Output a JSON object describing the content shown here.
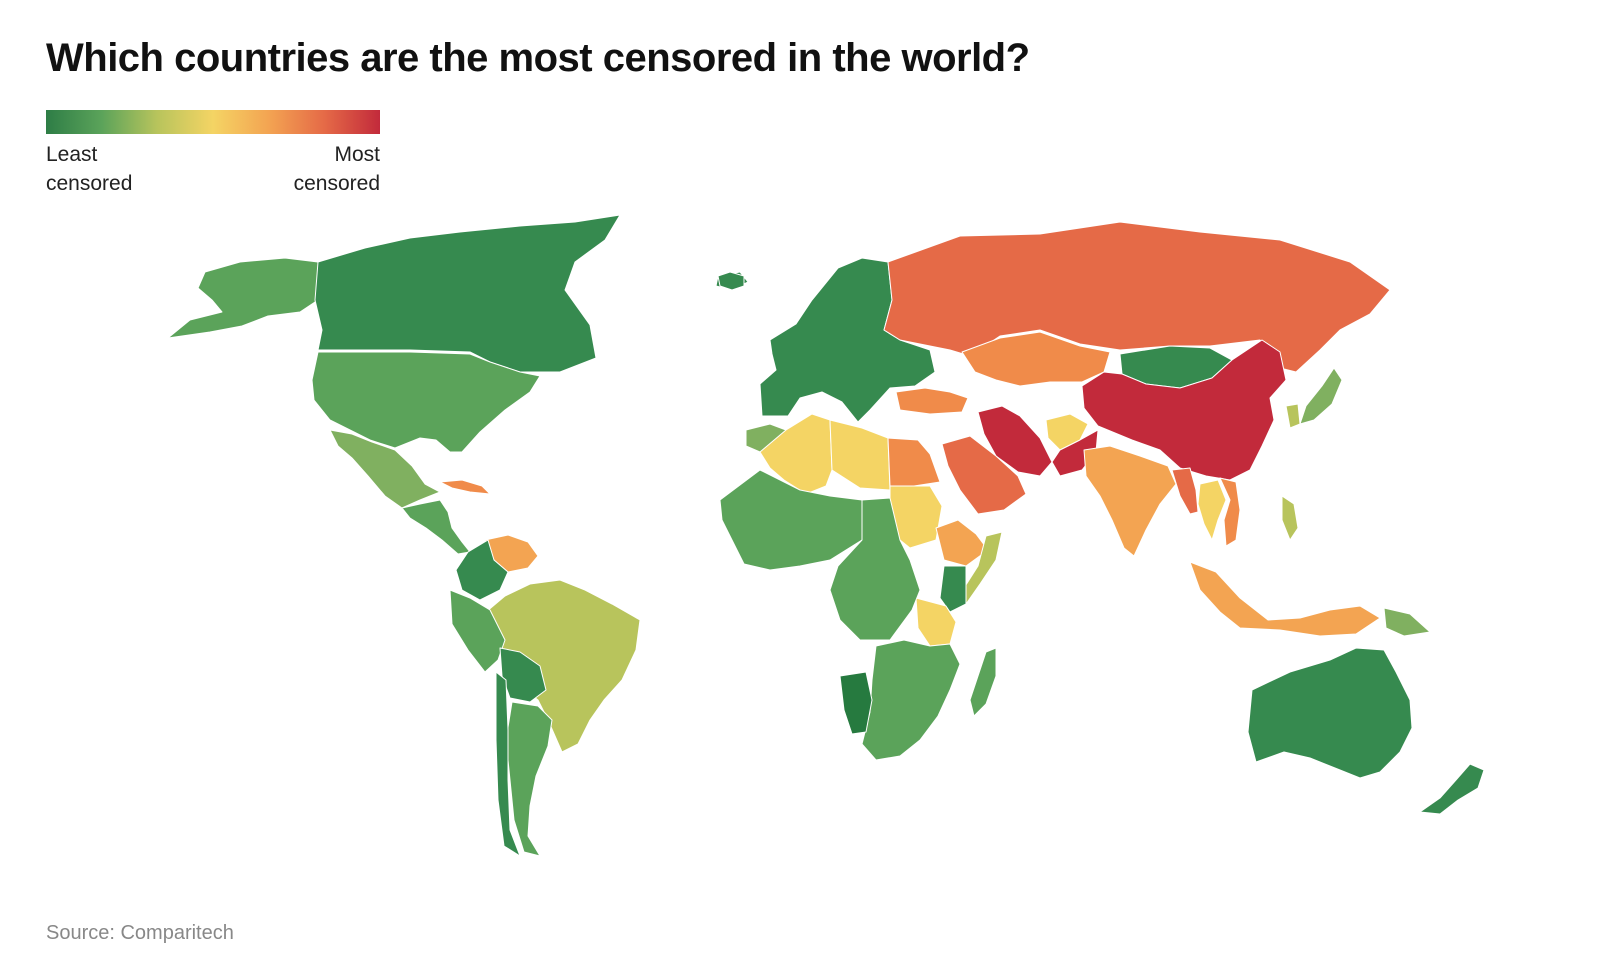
{
  "title": "Which countries are the most censored in the world?",
  "legend": {
    "min_label": "Least censored",
    "max_label": "Most censored",
    "colors": [
      "#2e7d46",
      "#5ba35a",
      "#b8c45c",
      "#f4d464",
      "#f3a452",
      "#e56a47",
      "#c22a3b"
    ]
  },
  "source": "Source: Comparitech",
  "map_data": {
    "scale": "censorship level",
    "regions": [
      {
        "name": "Alaska",
        "color": "#5ba35a"
      },
      {
        "name": "Canada",
        "color": "#368a4f"
      },
      {
        "name": "Greenland",
        "color": "#368a4f"
      },
      {
        "name": "United States",
        "color": "#5ba35a"
      },
      {
        "name": "Mexico",
        "color": "#80b060"
      },
      {
        "name": "Central America",
        "color": "#5ba35a"
      },
      {
        "name": "Cuba",
        "color": "#f08b4a"
      },
      {
        "name": "Venezuela",
        "color": "#f3a452"
      },
      {
        "name": "Colombia",
        "color": "#368a4f"
      },
      {
        "name": "Brazil",
        "color": "#b8c45c"
      },
      {
        "name": "Peru",
        "color": "#5ba35a"
      },
      {
        "name": "Bolivia",
        "color": "#368a4f"
      },
      {
        "name": "Argentina",
        "color": "#5ba35a"
      },
      {
        "name": "Chile",
        "color": "#368a4f"
      },
      {
        "name": "Iceland",
        "color": "#368a4f"
      },
      {
        "name": "Europe",
        "color": "#368a4f"
      },
      {
        "name": "Russia",
        "color": "#e56a47"
      },
      {
        "name": "Kazakhstan",
        "color": "#f08b4a"
      },
      {
        "name": "Mongolia",
        "color": "#368a4f"
      },
      {
        "name": "China",
        "color": "#c22a3b"
      },
      {
        "name": "Iran",
        "color": "#c22a3b"
      },
      {
        "name": "Turkey",
        "color": "#f08b4a"
      },
      {
        "name": "Saudi Arabia",
        "color": "#e56a47"
      },
      {
        "name": "Afghanistan",
        "color": "#f4d464"
      },
      {
        "name": "Pakistan",
        "color": "#c22a3b"
      },
      {
        "name": "India",
        "color": "#f3a452"
      },
      {
        "name": "Myanmar",
        "color": "#e56a47"
      },
      {
        "name": "Thailand",
        "color": "#f4d464"
      },
      {
        "name": "Vietnam",
        "color": "#f08b4a"
      },
      {
        "name": "Japan",
        "color": "#80b060"
      },
      {
        "name": "Korea",
        "color": "#b8c45c"
      },
      {
        "name": "Philippines",
        "color": "#b8c45c"
      },
      {
        "name": "Indonesia",
        "color": "#f3a452"
      },
      {
        "name": "Papua New Guinea",
        "color": "#80b060"
      },
      {
        "name": "Australia",
        "color": "#368a4f"
      },
      {
        "name": "New Zealand",
        "color": "#368a4f"
      },
      {
        "name": "Morocco",
        "color": "#80b060"
      },
      {
        "name": "Algeria",
        "color": "#f4d464"
      },
      {
        "name": "Libya",
        "color": "#f4d464"
      },
      {
        "name": "Egypt",
        "color": "#f08b4a"
      },
      {
        "name": "Sudan",
        "color": "#f4d464"
      },
      {
        "name": "Ethiopia",
        "color": "#f3a452"
      },
      {
        "name": "Somalia",
        "color": "#b8c45c"
      },
      {
        "name": "Kenya",
        "color": "#368a4f"
      },
      {
        "name": "Tanzania",
        "color": "#f4d464"
      },
      {
        "name": "West Africa",
        "color": "#5ba35a"
      },
      {
        "name": "Central Africa",
        "color": "#5ba35a"
      },
      {
        "name": "Southern Africa",
        "color": "#5ba35a"
      },
      {
        "name": "Namibia",
        "color": "#267a3f"
      },
      {
        "name": "Madagascar",
        "color": "#5ba35a"
      }
    ]
  }
}
